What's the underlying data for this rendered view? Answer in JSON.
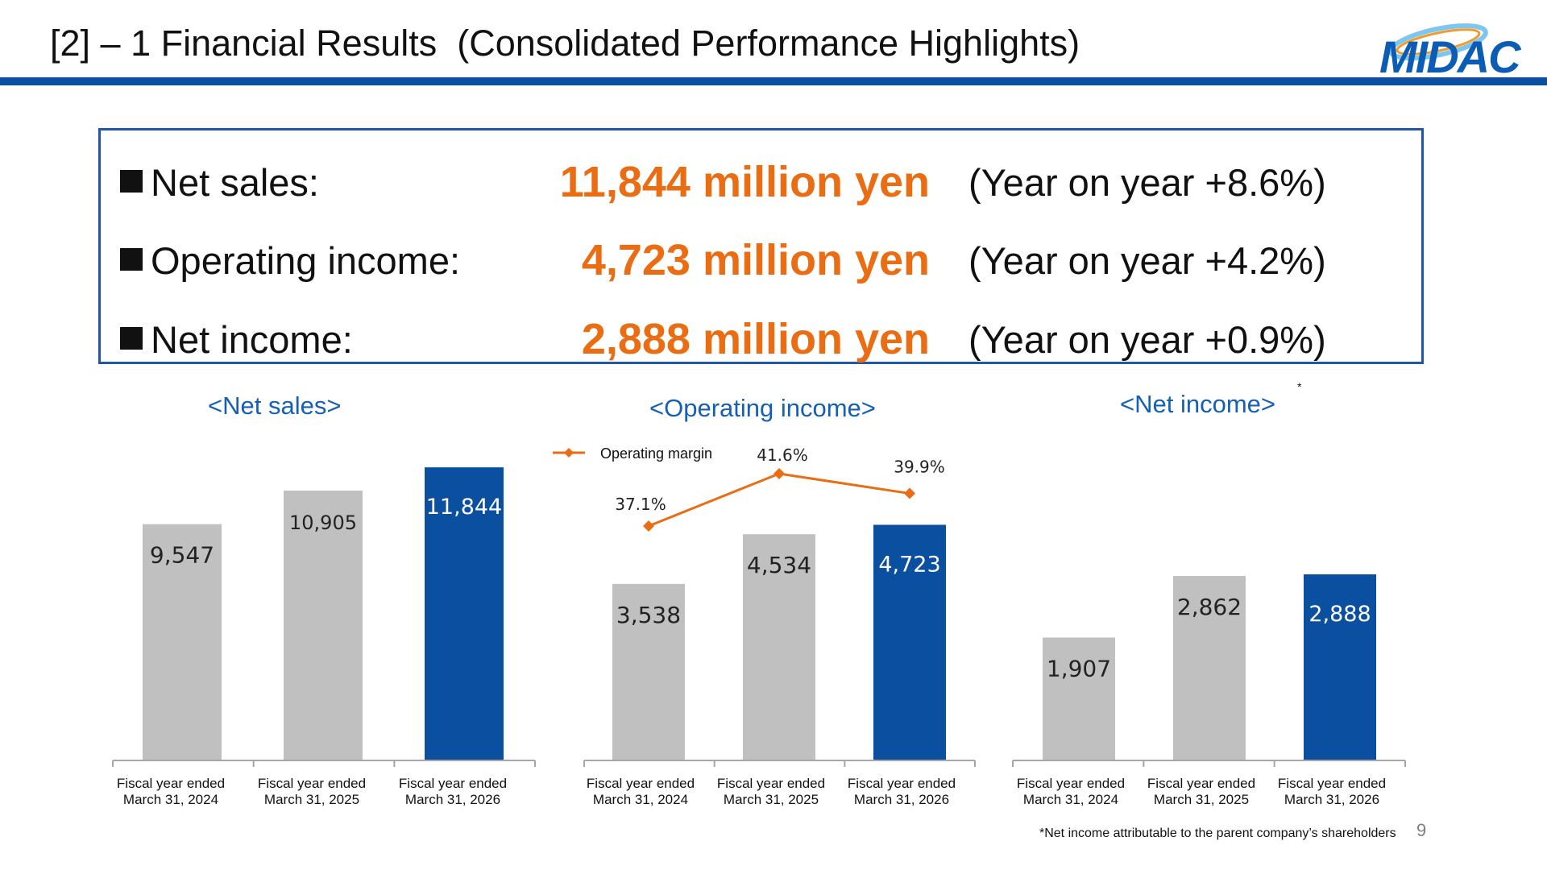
{
  "page": {
    "title": "[2] – 1 Financial Results  (Consolidated Performance Highlights)",
    "logo_text": "MIDAC",
    "page_number": "9",
    "footnote": "*Net income attributable to the parent company’s shareholders",
    "asterisk": "*"
  },
  "summary": [
    {
      "label": "Net sales:",
      "value": "11,844 million yen",
      "yoy": "(Year on year +8.6%)"
    },
    {
      "label": "Operating income:",
      "value": "4,723 million yen",
      "yoy": "(Year on year +4.2%)"
    },
    {
      "label": "Net income:",
      "value": "2,888 million yen",
      "yoy": "(Year on year +0.9%)"
    }
  ],
  "colors": {
    "brand_blue": "#0c4ea2",
    "bar_gray": "#c0c0c0",
    "bar_current": "#0a4fa0",
    "accent_orange": "#ea6d13"
  },
  "chart_data": [
    {
      "type": "bar",
      "title": "<Net sales>",
      "categories": [
        [
          "Fiscal year ended",
          "March 31, 2024"
        ],
        [
          "Fiscal year ended",
          "March 31, 2025"
        ],
        [
          "Fiscal year ended",
          "March 31, 2026"
        ]
      ],
      "values": [
        9547,
        10905,
        11844
      ],
      "value_labels": [
        "9,547",
        "10,905",
        "11,844"
      ],
      "ylim": [
        0,
        12500
      ]
    },
    {
      "type": "bar",
      "title": "<Operating income>",
      "categories": [
        [
          "Fiscal year ended",
          "March 31, 2024"
        ],
        [
          "Fiscal year ended",
          "March 31, 2025"
        ],
        [
          "Fiscal year ended",
          "March 31, 2026"
        ]
      ],
      "values": [
        3538,
        4534,
        4723
      ],
      "value_labels": [
        "3,538",
        "4,534",
        "4,723"
      ],
      "ylim": [
        0,
        6200
      ],
      "line_series": {
        "name": "Operating margin",
        "values": [
          37.1,
          41.6,
          39.9
        ],
        "value_labels": [
          "37.1%",
          "41.6%",
          "39.9%"
        ],
        "ylim": [
          20,
          45
        ]
      },
      "legend": "top-left"
    },
    {
      "type": "bar",
      "title": "<Net income>",
      "categories": [
        [
          "Fiscal year ended",
          "March 31, 2024"
        ],
        [
          "Fiscal year ended",
          "March 31, 2025"
        ],
        [
          "Fiscal year ended",
          "March 31, 2026"
        ]
      ],
      "values": [
        1907,
        2862,
        2888
      ],
      "value_labels": [
        "1,907",
        "2,862",
        "2,888"
      ],
      "ylim": [
        0,
        4800
      ]
    }
  ]
}
